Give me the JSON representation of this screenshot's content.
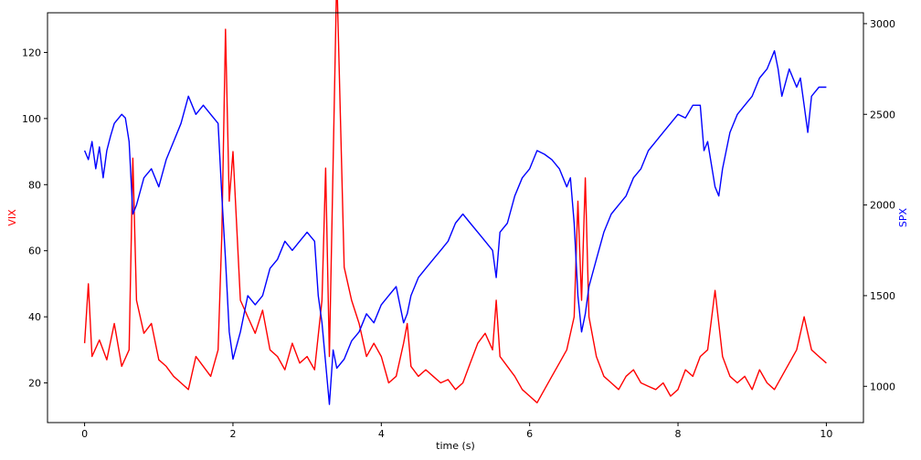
{
  "chart_data": {
    "type": "line",
    "xlabel": "time (s)",
    "xlim": [
      -0.5,
      10.5
    ],
    "x_ticks": [
      0,
      2,
      4,
      6,
      8,
      10
    ],
    "grid": false,
    "left_axis": {
      "label": "VIX",
      "color": "#ff0000",
      "ylim": [
        8,
        132
      ],
      "ticks": [
        20,
        40,
        60,
        80,
        100,
        120
      ]
    },
    "right_axis": {
      "label": "SPX",
      "color": "#0000ff",
      "ylim": [
        800,
        3060
      ],
      "ticks": [
        1000,
        1500,
        2000,
        2500,
        3000
      ]
    },
    "series": [
      {
        "axis": "left",
        "color": "#ff0000",
        "x": [
          0,
          0.05,
          0.1,
          0.2,
          0.3,
          0.4,
          0.5,
          0.6,
          0.65,
          0.7,
          0.8,
          0.9,
          1.0,
          1.1,
          1.2,
          1.3,
          1.4,
          1.5,
          1.6,
          1.7,
          1.8,
          1.85,
          1.9,
          1.95,
          2.0,
          2.1,
          2.2,
          2.3,
          2.4,
          2.5,
          2.6,
          2.7,
          2.8,
          2.9,
          3.0,
          3.1,
          3.2,
          3.25,
          3.3,
          3.4,
          3.5,
          3.6,
          3.7,
          3.8,
          3.9,
          4.0,
          4.1,
          4.2,
          4.3,
          4.35,
          4.4,
          4.5,
          4.6,
          4.7,
          4.8,
          4.9,
          5.0,
          5.1,
          5.2,
          5.3,
          5.4,
          5.5,
          5.55,
          5.6,
          5.7,
          5.8,
          5.9,
          6.0,
          6.1,
          6.2,
          6.3,
          6.4,
          6.5,
          6.6,
          6.65,
          6.7,
          6.75,
          6.8,
          6.9,
          7.0,
          7.1,
          7.2,
          7.3,
          7.4,
          7.5,
          7.6,
          7.7,
          7.8,
          7.9,
          8.0,
          8.1,
          8.2,
          8.3,
          8.4,
          8.5,
          8.55,
          8.6,
          8.7,
          8.8,
          8.9,
          9.0,
          9.1,
          9.2,
          9.3,
          9.4,
          9.5,
          9.6,
          9.7,
          9.75,
          9.8,
          9.9,
          10.0
        ],
        "y": [
          32,
          50,
          28,
          33,
          27,
          38,
          25,
          30,
          88,
          45,
          35,
          38,
          27,
          25,
          22,
          20,
          18,
          28,
          25,
          22,
          30,
          65,
          127,
          75,
          90,
          45,
          40,
          35,
          42,
          30,
          28,
          24,
          32,
          26,
          28,
          24,
          45,
          85,
          28,
          144,
          55,
          45,
          38,
          28,
          32,
          28,
          20,
          22,
          32,
          38,
          25,
          22,
          24,
          22,
          20,
          21,
          18,
          20,
          26,
          32,
          35,
          30,
          45,
          28,
          25,
          22,
          18,
          16,
          14,
          18,
          22,
          26,
          30,
          40,
          75,
          45,
          82,
          40,
          28,
          22,
          20,
          18,
          22,
          24,
          20,
          19,
          18,
          20,
          16,
          18,
          24,
          22,
          28,
          30,
          48,
          38,
          28,
          22,
          20,
          22,
          18,
          24,
          20,
          18,
          22,
          26,
          30,
          40,
          35,
          30,
          28,
          26
        ]
      },
      {
        "axis": "right",
        "color": "#0000ff",
        "x": [
          0,
          0.05,
          0.1,
          0.15,
          0.2,
          0.25,
          0.3,
          0.35,
          0.4,
          0.5,
          0.55,
          0.6,
          0.65,
          0.7,
          0.8,
          0.9,
          1.0,
          1.1,
          1.2,
          1.3,
          1.4,
          1.5,
          1.6,
          1.7,
          1.8,
          1.85,
          1.9,
          1.95,
          2.0,
          2.1,
          2.2,
          2.3,
          2.4,
          2.5,
          2.6,
          2.7,
          2.8,
          2.9,
          3.0,
          3.1,
          3.15,
          3.2,
          3.3,
          3.35,
          3.4,
          3.5,
          3.6,
          3.7,
          3.8,
          3.9,
          4.0,
          4.1,
          4.2,
          4.3,
          4.35,
          4.4,
          4.5,
          4.6,
          4.7,
          4.8,
          4.9,
          5.0,
          5.1,
          5.2,
          5.3,
          5.4,
          5.5,
          5.55,
          5.6,
          5.7,
          5.8,
          5.9,
          6.0,
          6.1,
          6.2,
          6.3,
          6.4,
          6.5,
          6.55,
          6.6,
          6.65,
          6.7,
          6.75,
          6.8,
          6.9,
          7.0,
          7.1,
          7.2,
          7.3,
          7.4,
          7.5,
          7.6,
          7.7,
          7.8,
          7.9,
          8.0,
          8.1,
          8.2,
          8.3,
          8.35,
          8.4,
          8.5,
          8.55,
          8.6,
          8.7,
          8.8,
          8.9,
          9.0,
          9.1,
          9.2,
          9.3,
          9.35,
          9.4,
          9.5,
          9.6,
          9.65,
          9.7,
          9.75,
          9.8,
          9.9,
          10.0
        ],
        "y": [
          2300,
          2250,
          2350,
          2200,
          2320,
          2150,
          2300,
          2380,
          2450,
          2500,
          2480,
          2350,
          1950,
          2000,
          2150,
          2200,
          2100,
          2250,
          2350,
          2450,
          2600,
          2500,
          2550,
          2500,
          2450,
          2050,
          1700,
          1300,
          1150,
          1300,
          1500,
          1450,
          1500,
          1650,
          1700,
          1800,
          1750,
          1800,
          1850,
          1800,
          1500,
          1350,
          900,
          1200,
          1100,
          1150,
          1250,
          1300,
          1400,
          1350,
          1450,
          1500,
          1550,
          1350,
          1400,
          1500,
          1600,
          1650,
          1700,
          1750,
          1800,
          1900,
          1950,
          1900,
          1850,
          1800,
          1750,
          1600,
          1850,
          1900,
          2050,
          2150,
          2200,
          2300,
          2280,
          2250,
          2200,
          2100,
          2150,
          1900,
          1500,
          1300,
          1400,
          1550,
          1700,
          1850,
          1950,
          2000,
          2050,
          2150,
          2200,
          2300,
          2350,
          2400,
          2450,
          2500,
          2480,
          2550,
          2550,
          2300,
          2350,
          2100,
          2050,
          2200,
          2400,
          2500,
          2550,
          2600,
          2700,
          2750,
          2850,
          2750,
          2600,
          2750,
          2650,
          2700,
          2550,
          2400,
          2600,
          2650,
          2650
        ]
      }
    ]
  }
}
